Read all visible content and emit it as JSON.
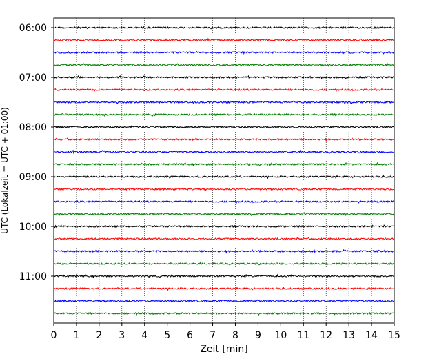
{
  "chart_data": {
    "type": "line",
    "title": "",
    "xlabel": "Zeit  [min]",
    "ylabel": "UTC (Lokalzeit = UTC + 01:00)",
    "xlim": [
      0,
      15
    ],
    "x_ticks": [
      "0",
      "1",
      "2",
      "3",
      "4",
      "5",
      "6",
      "7",
      "8",
      "9",
      "10",
      "11",
      "12",
      "13",
      "14",
      "15"
    ],
    "y_ticks": [
      "06:00",
      "07:00",
      "08:00",
      "09:00",
      "10:00",
      "11:00"
    ],
    "grid": "vertical dotted at each minute",
    "trace_interval_minutes": 15,
    "trace_colors": [
      "#000000",
      "#ff0000",
      "#0000ff",
      "#008000"
    ],
    "series": [
      {
        "start": "06:00",
        "color": "#000000"
      },
      {
        "start": "06:15",
        "color": "#ff0000"
      },
      {
        "start": "06:30",
        "color": "#0000ff"
      },
      {
        "start": "06:45",
        "color": "#008000"
      },
      {
        "start": "07:00",
        "color": "#000000"
      },
      {
        "start": "07:15",
        "color": "#ff0000"
      },
      {
        "start": "07:30",
        "color": "#0000ff"
      },
      {
        "start": "07:45",
        "color": "#008000"
      },
      {
        "start": "08:00",
        "color": "#000000"
      },
      {
        "start": "08:15",
        "color": "#ff0000"
      },
      {
        "start": "08:30",
        "color": "#0000ff"
      },
      {
        "start": "08:45",
        "color": "#008000"
      },
      {
        "start": "09:00",
        "color": "#000000"
      },
      {
        "start": "09:15",
        "color": "#ff0000"
      },
      {
        "start": "09:30",
        "color": "#0000ff"
      },
      {
        "start": "09:45",
        "color": "#008000"
      },
      {
        "start": "10:00",
        "color": "#000000"
      },
      {
        "start": "10:15",
        "color": "#ff0000"
      },
      {
        "start": "10:30",
        "color": "#0000ff"
      },
      {
        "start": "10:45",
        "color": "#008000"
      },
      {
        "start": "11:00",
        "color": "#000000"
      },
      {
        "start": "11:15",
        "color": "#ff0000"
      },
      {
        "start": "11:30",
        "color": "#0000ff"
      },
      {
        "start": "11:45",
        "color": "#008000"
      }
    ]
  }
}
